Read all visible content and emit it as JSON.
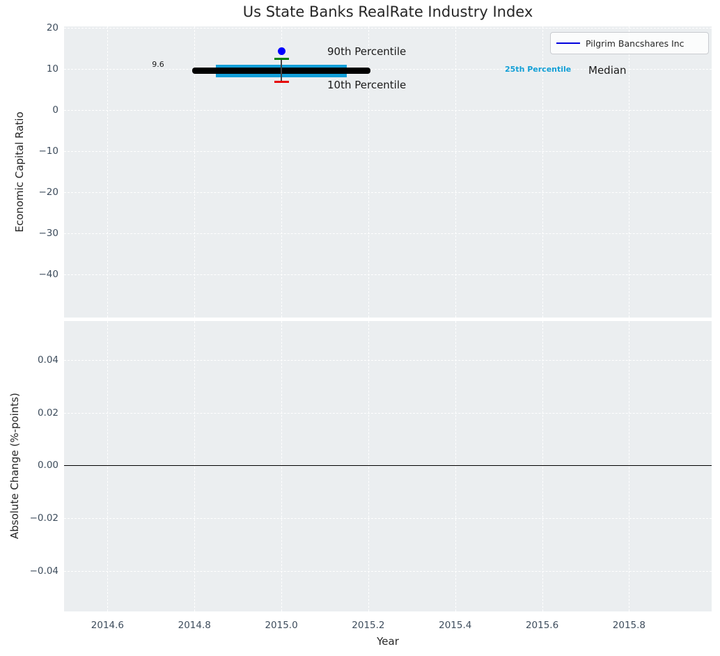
{
  "figure": {
    "title": "Us State Banks RealRate Industry Index"
  },
  "axis_labels": {
    "top_y": "Economic Capital Ratio",
    "bottom_y": "Absolute Change (%-points)",
    "x": "Year"
  },
  "legend": {
    "label": "Pilgrim Bancshares Inc",
    "line_color": "#0000dd",
    "position": "upper right"
  },
  "annotations": {
    "median_value_label": "9.6",
    "p90_label": "90th Percentile",
    "p10_label": "10th Percentile",
    "p25_label": "25th Percentile",
    "median_label": "Median"
  },
  "colors": {
    "axes_background": "#ebeef0",
    "grid": "#ffffff",
    "tick": "#3d4c5c",
    "title": "#262626",
    "company_dot": "#0000ff",
    "p90_cap": "#008000",
    "p10_cap": "#e60000",
    "whisker": "#444444",
    "iqr_bar": "#129ed8",
    "median_line": "#000000",
    "p25_text": "#129fd6",
    "zero_line": "#000000"
  },
  "chart_data": [
    {
      "type": "box",
      "title": "Us State Banks RealRate Industry Index",
      "ylabel": "Economic Capital Ratio",
      "xlim": [
        2014.5,
        2015.99
      ],
      "ylim": [
        -50.5,
        20.34
      ],
      "yticks": [
        20,
        10,
        0,
        -10,
        -20,
        -30,
        -40
      ],
      "ytick_labels": [
        "20",
        "10",
        "0",
        "−10",
        "−20",
        "−30",
        "−40"
      ],
      "xticks": [
        2014.6,
        2014.8,
        2015.0,
        2015.2,
        2015.4,
        2015.6,
        2015.8
      ],
      "grid": true,
      "legend_position": "upper right",
      "series": [
        {
          "name": "Pilgrim Bancshares Inc",
          "type": "scatter",
          "x": [
            2015.0
          ],
          "y": [
            14.3
          ],
          "color": "#0000ff"
        }
      ],
      "industry_percentiles": {
        "x": 2015.0,
        "p90": 12.5,
        "p75": 11.1,
        "median": 9.6,
        "p25": 8.0,
        "p10": 6.9,
        "median_line_span": [
          2014.8,
          2015.2
        ],
        "iqr_bar_span": [
          2014.85,
          2015.15
        ]
      }
    },
    {
      "type": "line",
      "ylabel": "Absolute Change (%-points)",
      "xlabel": "Year",
      "xlim": [
        2014.5,
        2015.99
      ],
      "ylim": [
        -0.0553,
        0.0547
      ],
      "yticks": [
        0.04,
        0.02,
        0.0,
        -0.02,
        -0.04
      ],
      "ytick_labels": [
        "0.04",
        "0.02",
        "0.00",
        "−0.02",
        "−0.04"
      ],
      "xticks": [
        2014.6,
        2014.8,
        2015.0,
        2015.2,
        2015.4,
        2015.6,
        2015.8
      ],
      "xtick_labels": [
        "2014.6",
        "2014.8",
        "2015.0",
        "2015.2",
        "2015.4",
        "2015.6",
        "2015.8"
      ],
      "grid": true,
      "zero_line": 0.0,
      "series": []
    }
  ]
}
